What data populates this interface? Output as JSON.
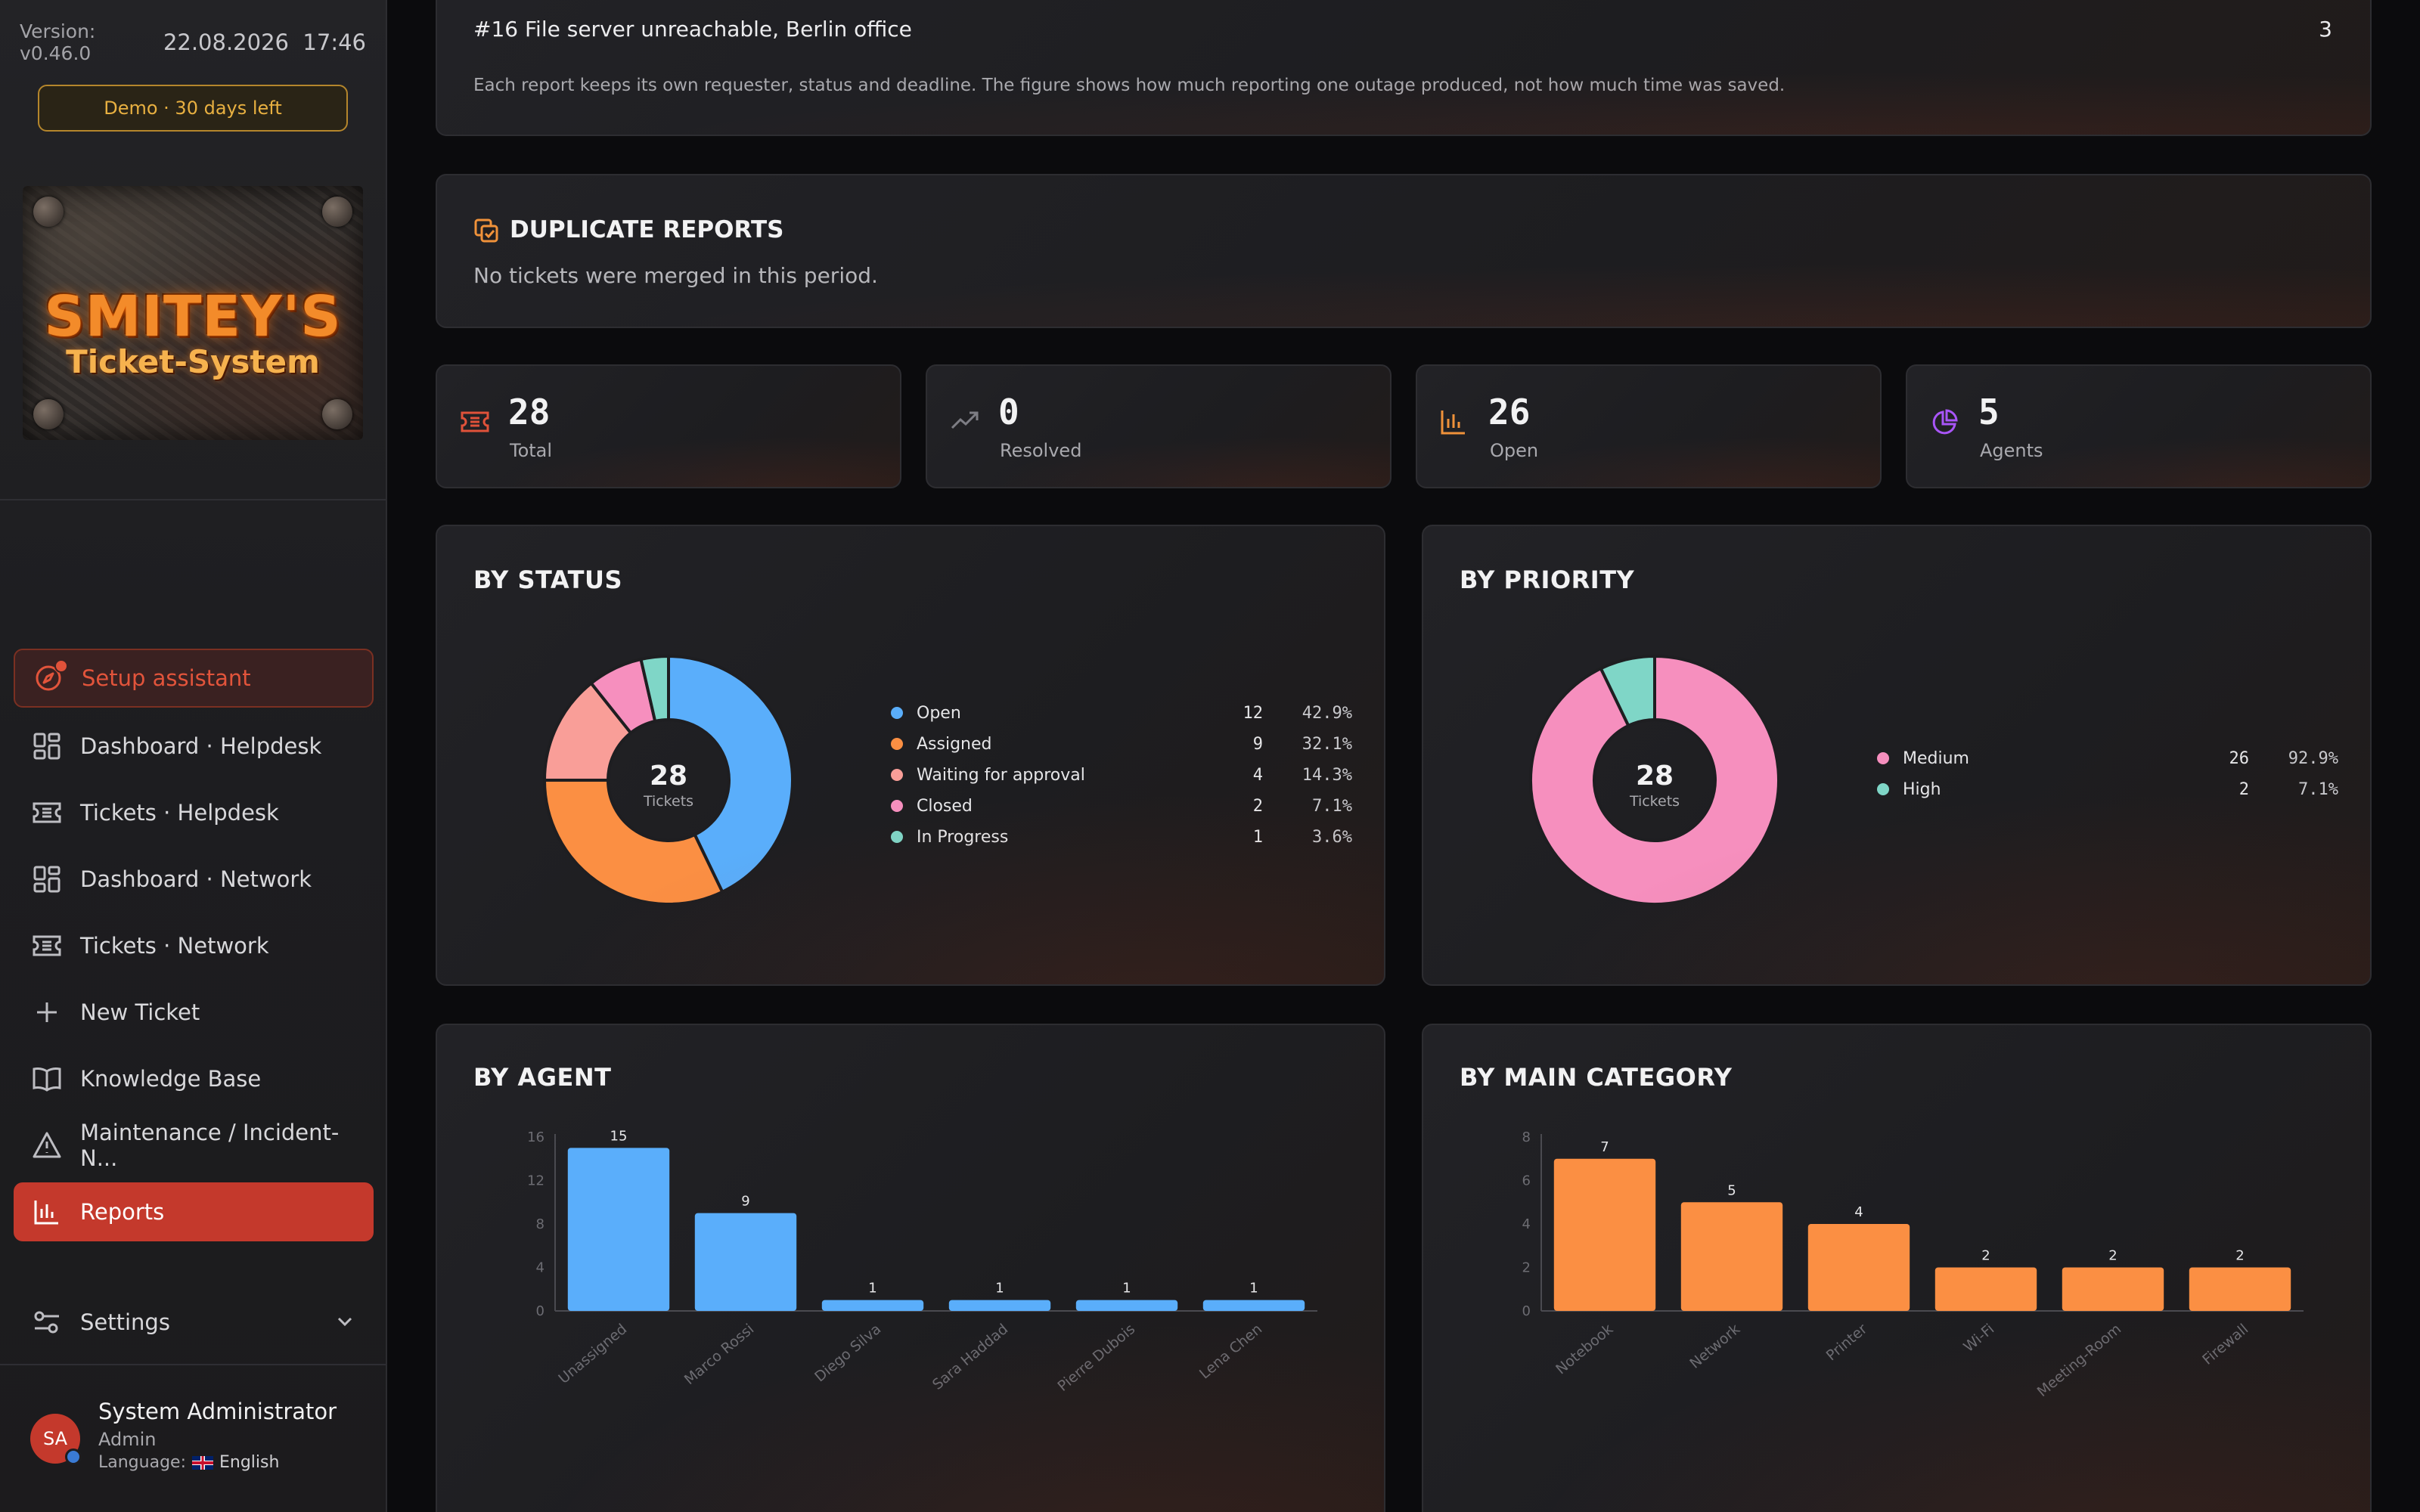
{
  "app": {
    "version": "Version: v0.46.0",
    "datetime": "22.08.2026  17:46",
    "demo_badge": "Demo · 30 days left",
    "logo_line1": "SMITEY'S",
    "logo_line2": "Ticket-System"
  },
  "nav": {
    "setup": "Setup assistant",
    "items": [
      {
        "label": "Dashboard · Helpdesk",
        "icon": "dashboard-icon"
      },
      {
        "label": "Tickets · Helpdesk",
        "icon": "ticket-icon"
      },
      {
        "label": "Dashboard · Network",
        "icon": "dashboard-icon"
      },
      {
        "label": "Tickets · Network",
        "icon": "ticket-icon"
      },
      {
        "label": "New Ticket",
        "icon": "plus-icon"
      },
      {
        "label": "Knowledge Base",
        "icon": "book-icon"
      },
      {
        "label": "Maintenance / Incident-N...",
        "icon": "warning-icon"
      },
      {
        "label": "Reports",
        "icon": "chart-icon"
      }
    ],
    "settings": "Settings"
  },
  "user": {
    "initials": "SA",
    "name": "System Administrator",
    "role": "Admin",
    "language_label": "Language:",
    "language": "English"
  },
  "outage": {
    "title": "#16 File server unreachable, Berlin office",
    "count": "3",
    "note": "Each report keeps its own requester, status and deadline. The figure shows how much reporting one outage produced, not how much time was saved."
  },
  "duplicates": {
    "title": "DUPLICATE REPORTS",
    "text": "No tickets were merged in this period."
  },
  "kpis": [
    {
      "value": "28",
      "label": "Total",
      "icon": "ticket-icon",
      "color": "#e0523a"
    },
    {
      "value": "0",
      "label": "Resolved",
      "icon": "trend-up-icon",
      "color": "#7d7d84"
    },
    {
      "value": "26",
      "label": "Open",
      "icon": "bar-chart-icon",
      "color": "#f0923a"
    },
    {
      "value": "5",
      "label": "Agents",
      "icon": "pie-chart-icon",
      "color": "#a855f7"
    }
  ],
  "chart_data": [
    {
      "type": "pie",
      "title": "BY STATUS",
      "center_value": "28",
      "center_label": "Tickets",
      "slices": [
        {
          "label": "Open",
          "value": 12,
          "pct": "42.9%",
          "color": "#5aaefb"
        },
        {
          "label": "Assigned",
          "value": 9,
          "pct": "32.1%",
          "color": "#fb8f43"
        },
        {
          "label": "Waiting for approval",
          "value": 4,
          "pct": "14.3%",
          "color": "#f99e98"
        },
        {
          "label": "Closed",
          "value": 2,
          "pct": "7.1%",
          "color": "#f68fbe"
        },
        {
          "label": "In Progress",
          "value": 1,
          "pct": "3.6%",
          "color": "#7fd6c7"
        }
      ]
    },
    {
      "type": "pie",
      "title": "BY PRIORITY",
      "center_value": "28",
      "center_label": "Tickets",
      "slices": [
        {
          "label": "Medium",
          "value": 26,
          "pct": "92.9%",
          "color": "#f68fbe"
        },
        {
          "label": "High",
          "value": 2,
          "pct": "7.1%",
          "color": "#7fd6c7"
        }
      ]
    },
    {
      "type": "bar",
      "title": "BY AGENT",
      "categories": [
        "Unassigned",
        "Marco Rossi",
        "Diego Silva",
        "Sara Haddad",
        "Pierre Dubois",
        "Lena Chen"
      ],
      "values": [
        15,
        9,
        1,
        1,
        1,
        1
      ],
      "ylim": [
        0,
        16
      ],
      "yticks": [
        0,
        4,
        8,
        12,
        16
      ],
      "color": "#5aaefb"
    },
    {
      "type": "bar",
      "title": "BY MAIN CATEGORY",
      "categories": [
        "Notebook",
        "Network",
        "Printer",
        "Wi-Fi",
        "Meeting-Room",
        "Firewall"
      ],
      "values": [
        7,
        5,
        4,
        2,
        2,
        2
      ],
      "ylim": [
        0,
        8
      ],
      "yticks": [
        0,
        2,
        4,
        6,
        8
      ],
      "color": "#fb8f43"
    }
  ]
}
